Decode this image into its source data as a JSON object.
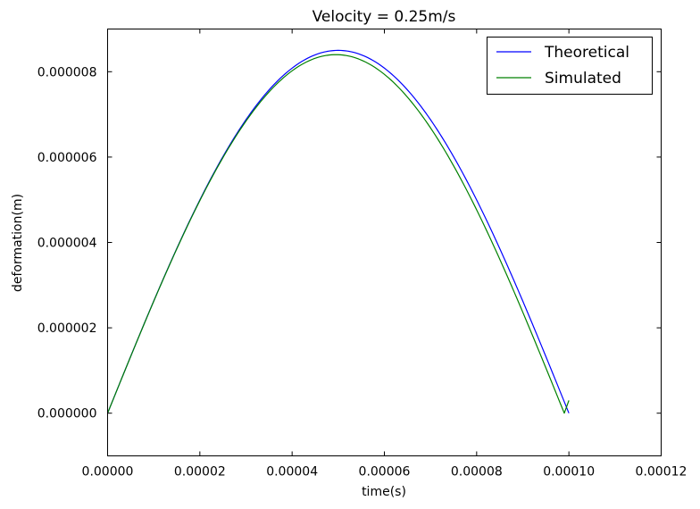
{
  "chart_data": {
    "type": "line",
    "title": "Velocity = 0.25m/s",
    "xlabel": "time(s)",
    "ylabel": "deformation(m)",
    "xlim": [
      0,
      0.00012
    ],
    "ylim": [
      -1e-06,
      9e-06
    ],
    "x_ticks": [
      0,
      2e-05,
      4e-05,
      6e-05,
      8e-05,
      0.0001,
      0.00012
    ],
    "x_tick_labels": [
      "0.00000",
      "0.00002",
      "0.00004",
      "0.00006",
      "0.00008",
      "0.00010",
      "0.00012"
    ],
    "y_ticks": [
      0,
      2e-06,
      4e-06,
      6e-06,
      8e-06
    ],
    "y_tick_labels": [
      "0.000000",
      "0.000002",
      "0.000004",
      "0.000006",
      "0.000008"
    ],
    "grid": false,
    "legend_position": "top-right",
    "series": [
      {
        "name": "Theoretical",
        "color": "#0000ff",
        "x": [
          0,
          1e-05,
          2e-05,
          3e-05,
          4e-05,
          5e-05,
          6e-05,
          7e-05,
          8e-05,
          9e-05,
          0.0001
        ],
        "y": [
          0,
          2.6e-06,
          5e-06,
          6.9e-06,
          8.1e-06,
          8.5e-06,
          8.1e-06,
          6.9e-06,
          5e-06,
          2.6e-06,
          0
        ]
      },
      {
        "name": "Simulated",
        "color": "#008000",
        "x": [
          0,
          1e-05,
          2e-05,
          3e-05,
          4e-05,
          5e-05,
          6e-05,
          7e-05,
          8e-05,
          9e-05,
          9.9e-05,
          0.0001
        ],
        "y": [
          0,
          2.6e-06,
          5e-06,
          6.8e-06,
          8e-06,
          8.4e-06,
          7.9e-06,
          6.7e-06,
          4.8e-06,
          2.3e-06,
          0,
          3e-07
        ]
      }
    ]
  }
}
